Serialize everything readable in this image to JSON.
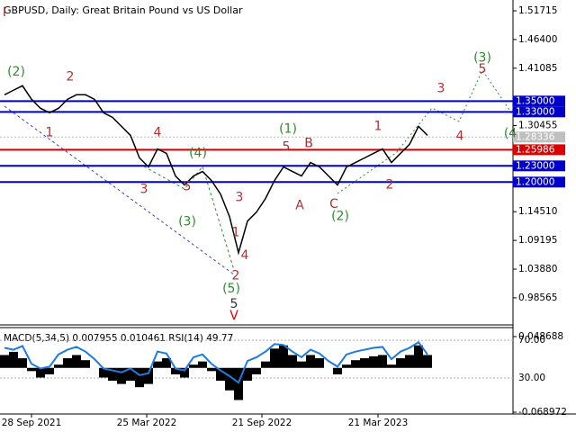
{
  "chart_data": {
    "type": "line",
    "title": "GBPUSD, Daily:  Great Britain Pound vs US Dollar",
    "color": "#000000",
    "values": [
      1.3617,
      1.3701,
      1.3784,
      1.3533,
      1.3366,
      1.3283,
      1.3366,
      1.3533,
      1.3617,
      1.3617,
      1.3533,
      1.3283,
      1.3199,
      1.3032,
      1.2865,
      1.2447,
      1.228,
      1.2614,
      1.2531,
      1.2113,
      1.1946,
      1.2113,
      1.2196,
      1.2029,
      1.1779,
      1.1361,
      1.0692,
      1.1277,
      1.1444,
      1.1695,
      1.2029,
      1.228,
      1.2196,
      1.2113,
      1.2363,
      1.228,
      1.2113,
      1.1946,
      1.228,
      1.2363,
      1.2447,
      1.2531,
      1.2614,
      1.2363,
      1.2531,
      1.2698,
      1.3032,
      1.2865
    ],
    "ylim": [
      0.9405,
      1.5372
    ],
    "yticks": [
      {
        "value": 1.51715,
        "label": "1.51715"
      },
      {
        "value": 1.464,
        "label": "1.46400"
      },
      {
        "value": 1.41085,
        "label": "1.41085"
      },
      {
        "value": 1.30455,
        "label": "1.30455"
      },
      {
        "value": 1.1451,
        "label": "1.14510"
      },
      {
        "value": 1.09195,
        "label": "1.09195"
      },
      {
        "value": 1.0388,
        "label": "1.03880"
      },
      {
        "value": 0.98565,
        "label": "0.98565"
      }
    ],
    "xticks": [
      {
        "value": 3,
        "label": "28 Sep 2021"
      },
      {
        "value": 15.8,
        "label": "25 Mar 2022"
      },
      {
        "value": 28.6,
        "label": "21 Sep 2022"
      },
      {
        "value": 41.5,
        "label": "21 Mar 2023"
      }
    ],
    "levels": [
      {
        "value": 1.35,
        "label": "1.35000",
        "color": "#0000cc"
      },
      {
        "value": 1.33,
        "label": "1.33000",
        "color": "#0000cc"
      },
      {
        "value": 1.25986,
        "label": "1.25986",
        "color": "#dd0000"
      },
      {
        "value": 1.23,
        "label": "1.23000",
        "color": "#0000cc"
      },
      {
        "value": 1.2,
        "label": "1.20000",
        "color": "#0000cc"
      }
    ],
    "last_price": {
      "value": 1.28336,
      "label": "1.28336"
    },
    "annotations": [
      {
        "text": "I",
        "x": 0,
        "y": 1.514,
        "color": "#b03030"
      },
      {
        "text": "(2)",
        "x": 1.3,
        "y": 1.4035,
        "color": "#2e8b2e"
      },
      {
        "text": "2",
        "x": 7.3,
        "y": 1.395,
        "color": "#b03030"
      },
      {
        "text": "1",
        "x": 5,
        "y": 1.2915,
        "color": "#b03030"
      },
      {
        "text": "4",
        "x": 17,
        "y": 1.2915,
        "color": "#b03030"
      },
      {
        "text": "3",
        "x": 15.5,
        "y": 1.186,
        "color": "#b03030"
      },
      {
        "text": "(4)",
        "x": 21.5,
        "y": 1.253,
        "color": "#2e8b2e"
      },
      {
        "text": "5",
        "x": 20.3,
        "y": 1.191,
        "color": "#b03030"
      },
      {
        "text": "(3)",
        "x": 20.3,
        "y": 1.126,
        "color": "#2e8b2e"
      },
      {
        "text": "3",
        "x": 26.1,
        "y": 1.171,
        "color": "#b03030"
      },
      {
        "text": "1",
        "x": 25.7,
        "y": 1.106,
        "color": "#b03030"
      },
      {
        "text": "4",
        "x": 26.7,
        "y": 1.064,
        "color": "#b03030"
      },
      {
        "text": "2",
        "x": 25.7,
        "y": 1.026,
        "color": "#b03030"
      },
      {
        "text": "(5)",
        "x": 25.2,
        "y": 1.002,
        "color": "#2e8b2e"
      },
      {
        "text": "5",
        "x": 25.5,
        "y": 0.974,
        "color": "#333333"
      },
      {
        "text": "V",
        "x": 25.5,
        "y": 0.952,
        "color": "#dd0000"
      },
      {
        "text": "(1)",
        "x": 31.5,
        "y": 1.298,
        "color": "#2e8b2e"
      },
      {
        "text": "5",
        "x": 31.3,
        "y": 1.265,
        "color": "#b03030"
      },
      {
        "text": "B",
        "x": 33.8,
        "y": 1.271,
        "color": "#b03030"
      },
      {
        "text": "A",
        "x": 32.8,
        "y": 1.156,
        "color": "#b03030"
      },
      {
        "text": "C",
        "x": 36.6,
        "y": 1.159,
        "color": "#b03030"
      },
      {
        "text": "(2)",
        "x": 37.3,
        "y": 1.136,
        "color": "#2e8b2e"
      },
      {
        "text": "1",
        "x": 41.5,
        "y": 1.3032,
        "color": "#b03030"
      },
      {
        "text": "2",
        "x": 42.8,
        "y": 1.195,
        "color": "#b03030"
      },
      {
        "text": "3",
        "x": 48.5,
        "y": 1.3734,
        "color": "#b03030"
      },
      {
        "text": "4",
        "x": 50.6,
        "y": 1.285,
        "color": "#b03030"
      },
      {
        "text": "5",
        "x": 53.1,
        "y": 1.4085,
        "color": "#b03030"
      },
      {
        "text": "(3)",
        "x": 53.1,
        "y": 1.43,
        "color": "#2e8b2e"
      },
      {
        "text": "(4",
        "x": 56.2,
        "y": 1.29,
        "color": "#2e8b2e"
      }
    ],
    "indicator": {
      "title": "MACD(5,34,5) 0.007955 0.010461 RSI(14) 49.77",
      "macd": [
        0.02,
        0.025,
        0.015,
        -0.005,
        -0.015,
        -0.01,
        0.005,
        0.015,
        0.02,
        0.012,
        0,
        -0.015,
        -0.02,
        -0.025,
        -0.02,
        -0.03,
        -0.025,
        0.01,
        0.015,
        -0.01,
        -0.015,
        0.005,
        0.01,
        -0.005,
        -0.02,
        -0.035,
        -0.05,
        -0.02,
        -0.01,
        0.01,
        0.03,
        0.035,
        0.02,
        0.01,
        0.02,
        0.015,
        0,
        -0.01,
        0.005,
        0.012,
        0.015,
        0.018,
        0.02,
        0.005,
        0.015,
        0.02,
        0.035,
        0.02
      ],
      "macd_color": "#000000",
      "macd_lim": [
        -0.068972,
        0.048688
      ],
      "macd_ticks": [
        {
          "value": 0.048688,
          "label": "0.048688"
        },
        {
          "value": -0.068972,
          "label": "-0.068972"
        }
      ],
      "rsi": [
        62,
        60,
        64,
        45,
        40,
        42,
        55,
        60,
        63,
        58,
        50,
        40,
        38,
        36,
        40,
        33,
        35,
        58,
        56,
        40,
        38,
        52,
        55,
        45,
        38,
        32,
        25,
        48,
        52,
        58,
        66,
        65,
        58,
        52,
        60,
        56,
        48,
        42,
        55,
        58,
        60,
        62,
        63,
        50,
        58,
        62,
        68,
        55
      ],
      "rsi_color": "#1e7be0",
      "rsi_lim": [
        -6.4,
        81.6
      ],
      "rsi_ticks": [
        {
          "value": 70,
          "label": "70.00"
        },
        {
          "value": 30,
          "label": "30.00"
        }
      ]
    }
  }
}
